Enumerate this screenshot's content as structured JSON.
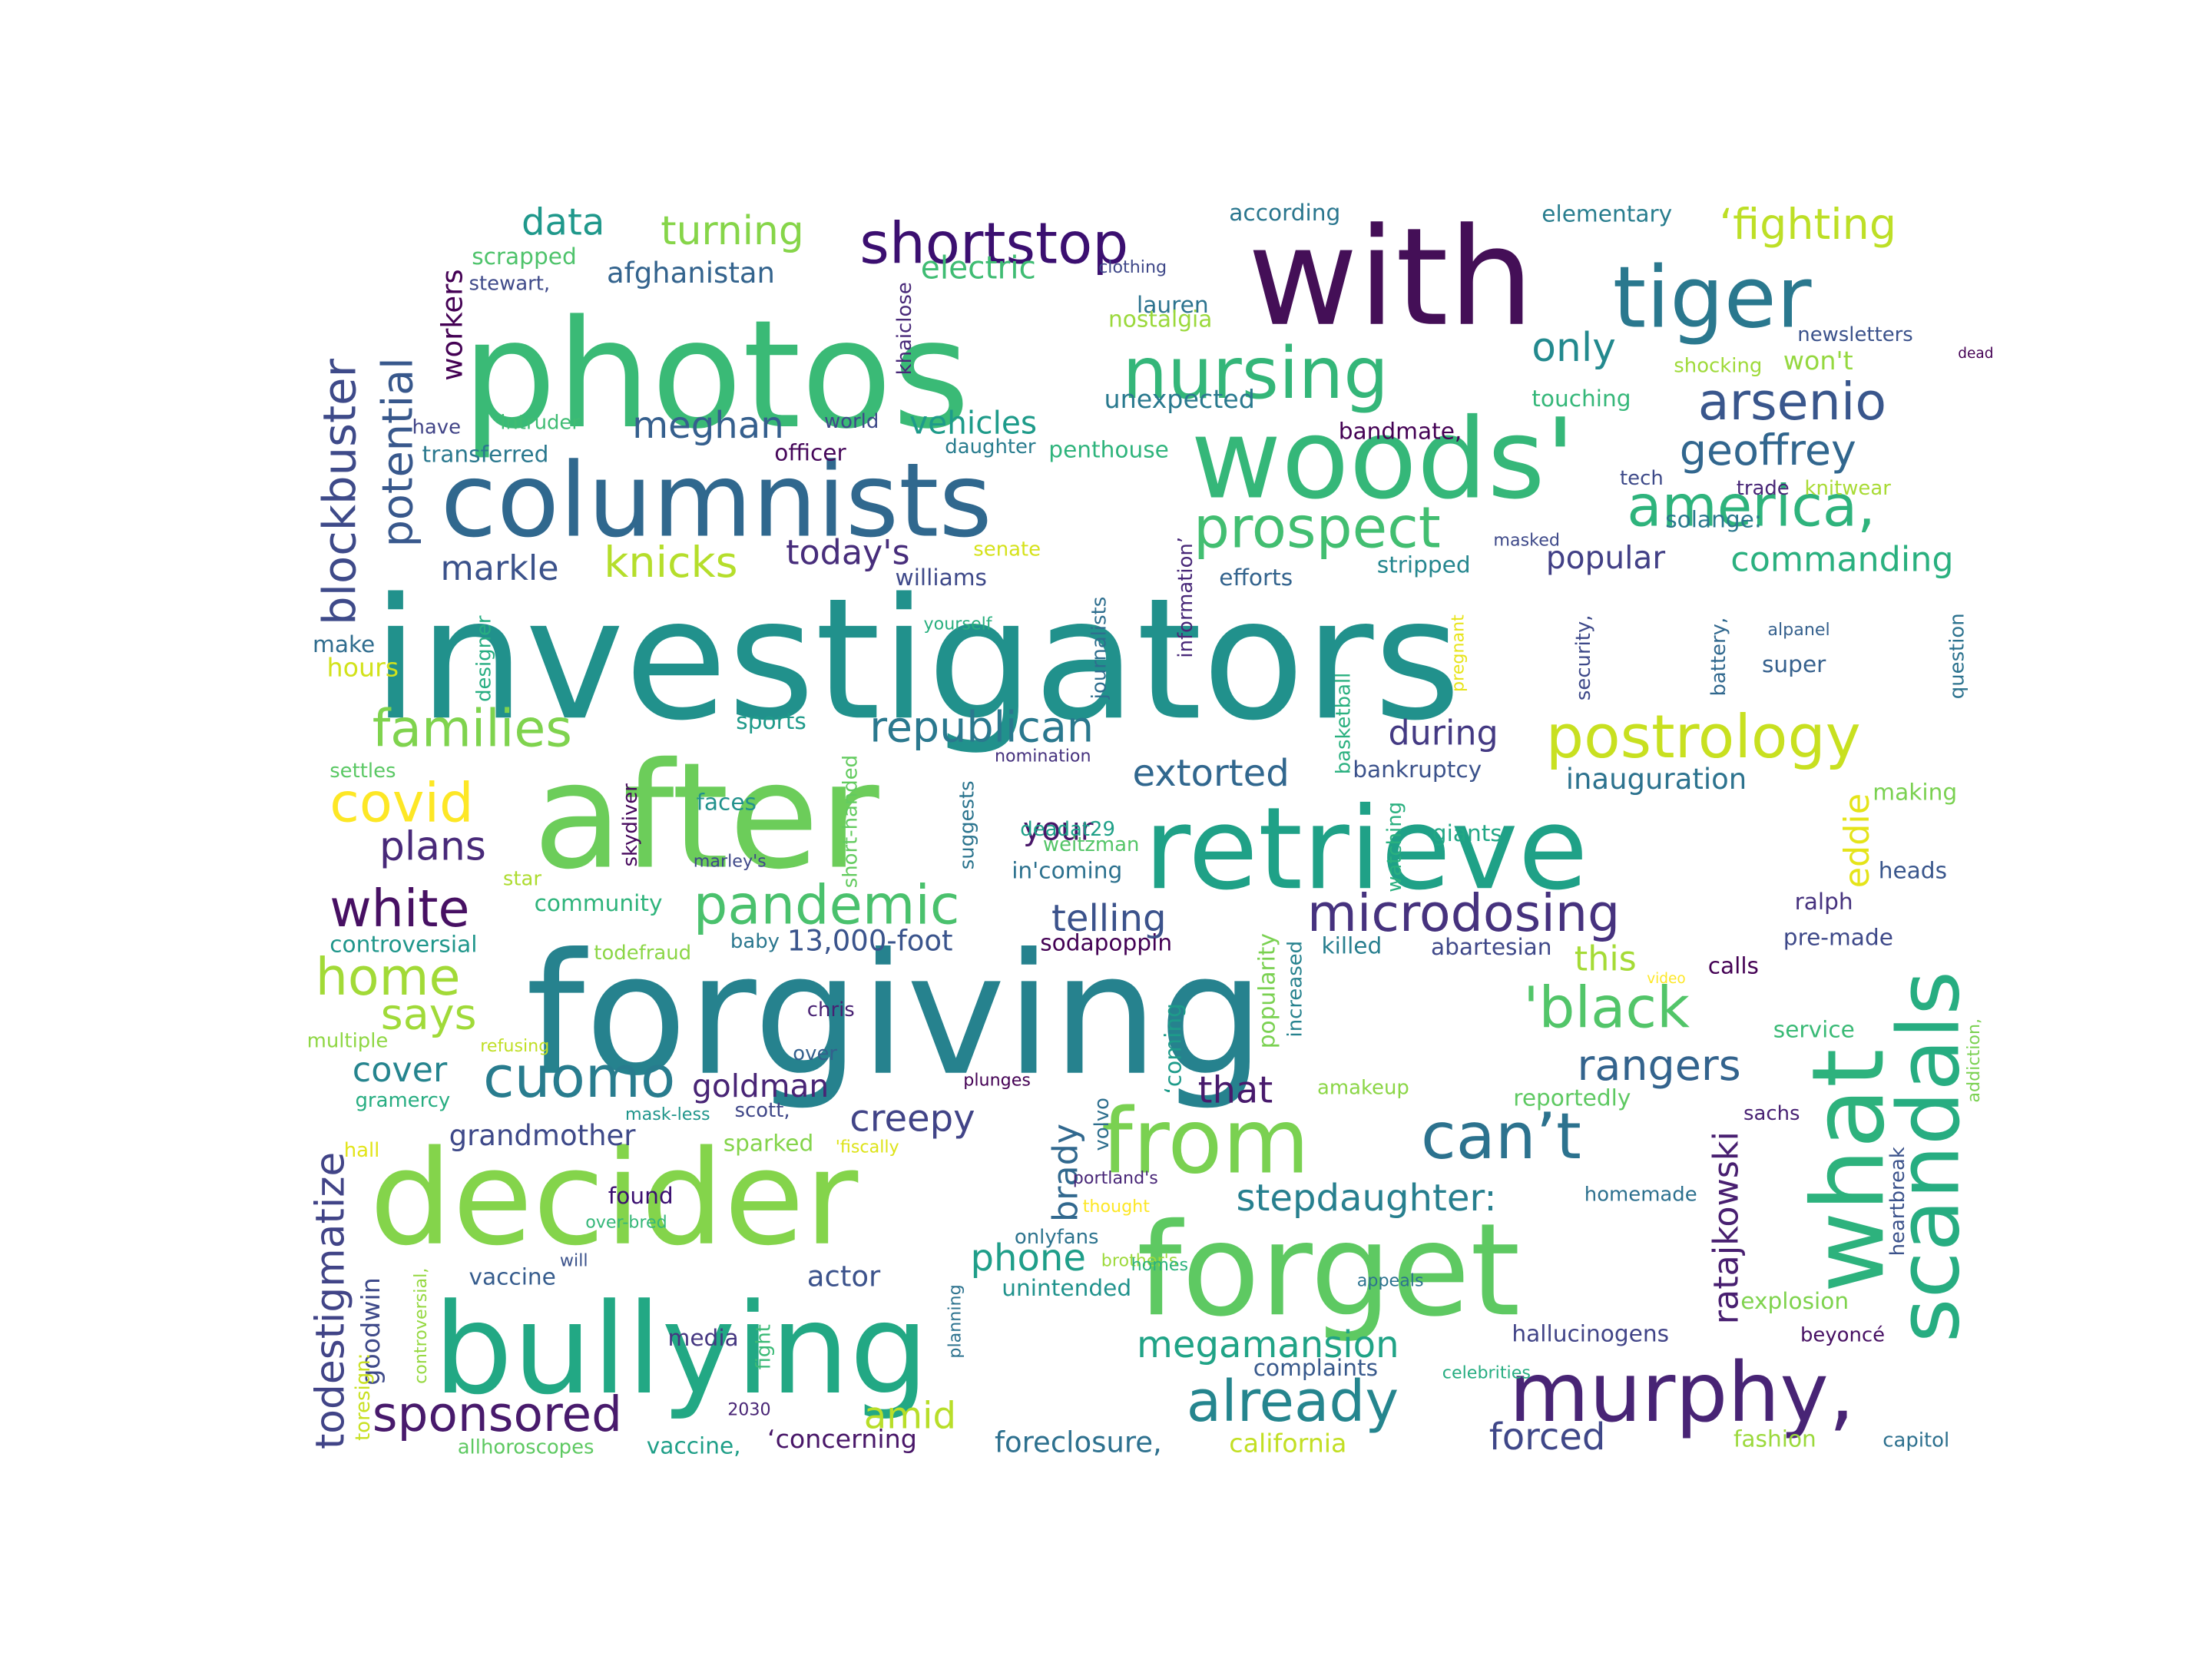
{
  "words": [
    {
      "text": "investigators",
      "color": "#21918c"
    },
    {
      "text": "forgiving",
      "color": "#26828e"
    },
    {
      "text": "photos",
      "color": "#3aba76"
    },
    {
      "text": "after",
      "color": "#6ccd5a"
    },
    {
      "text": "with",
      "color": "#440f57"
    },
    {
      "text": "forget",
      "color": "#5ec962"
    },
    {
      "text": "decider",
      "color": "#84d44b"
    },
    {
      "text": "bullying",
      "color": "#22a884"
    },
    {
      "text": "woods'",
      "color": "#35b779"
    },
    {
      "text": "retrieve",
      "color": "#1fa187"
    },
    {
      "text": "columnists",
      "color": "#30688e"
    },
    {
      "text": "what",
      "color": "#2db27d"
    },
    {
      "text": "murphy,",
      "color": "#482475"
    },
    {
      "text": "tiger",
      "color": "#2a788e"
    },
    {
      "text": "scandals",
      "color": "#27ad81"
    },
    {
      "text": "from",
      "color": "#7ad151"
    },
    {
      "text": "can’t",
      "color": "#2c728e"
    },
    {
      "text": "nursing",
      "color": "#34b679"
    },
    {
      "text": "shortstop",
      "color": "#3b0f70"
    },
    {
      "text": "blockbuster",
      "color": "#3e4a89"
    },
    {
      "text": "potential",
      "color": "#38588c"
    },
    {
      "text": "prospect",
      "color": "#42be71"
    },
    {
      "text": "america,",
      "color": "#2eb37c"
    },
    {
      "text": "arsenio",
      "color": "#39568c"
    },
    {
      "text": "postrology",
      "color": "#c8e020"
    },
    {
      "text": "microdosing",
      "color": "#46327e"
    },
    {
      "text": "pandemic",
      "color": "#4ac16d"
    },
    {
      "text": "'black",
      "color": "#52c569"
    },
    {
      "text": "already",
      "color": "#25858e"
    },
    {
      "text": "families",
      "color": "#7fd34e"
    },
    {
      "text": "covid",
      "color": "#fde725"
    },
    {
      "text": "white",
      "color": "#471063"
    },
    {
      "text": "home",
      "color": "#a2da37"
    },
    {
      "text": "cuomo",
      "color": "#287c8e"
    },
    {
      "text": "sponsored",
      "color": "#481a6c"
    },
    {
      "text": "todestigmatize",
      "color": "#414487"
    },
    {
      "text": "megamansion",
      "color": "#20a386"
    },
    {
      "text": "geoffrey",
      "color": "#31668e"
    },
    {
      "text": "republican",
      "color": "#2a788e"
    },
    {
      "text": "says",
      "color": "#a0da39"
    },
    {
      "text": "rangers",
      "color": "#33638d"
    },
    {
      "text": "stepdaughter:",
      "color": "#277f8e"
    },
    {
      "text": "data",
      "color": "#1f988b"
    },
    {
      "text": "turning",
      "color": "#86d549"
    },
    {
      "text": "electric",
      "color": "#3fbc73"
    },
    {
      "text": "only",
      "color": "#23898e"
    },
    {
      "text": "‘fighting",
      "color": "#bddf26"
    },
    {
      "text": "meghan",
      "color": "#355f8d"
    },
    {
      "text": "vehicles",
      "color": "#1e9b8a"
    },
    {
      "text": "knicks",
      "color": "#b5de2b"
    },
    {
      "text": "markle",
      "color": "#3b528b"
    },
    {
      "text": "today's",
      "color": "#472d7b"
    },
    {
      "text": "commanding",
      "color": "#2ab07f"
    },
    {
      "text": "popular",
      "color": "#424086"
    },
    {
      "text": "plans",
      "color": "#482979"
    },
    {
      "text": "extorted",
      "color": "#31678e"
    },
    {
      "text": "during",
      "color": "#443a83"
    },
    {
      "text": "inauguration",
      "color": "#2c728e"
    },
    {
      "text": "your",
      "color": "#481769"
    },
    {
      "text": "telling",
      "color": "#3b528b"
    },
    {
      "text": "eddie",
      "color": "#e5e419"
    },
    {
      "text": "brady",
      "color": "#31688e"
    },
    {
      "text": "ratajkowski",
      "color": "#481f70"
    },
    {
      "text": "creepy",
      "color": "#414487"
    },
    {
      "text": "cover",
      "color": "#25848e"
    },
    {
      "text": "grandmother",
      "color": "#3e4989"
    },
    {
      "text": "goldman",
      "color": "#482475"
    },
    {
      "text": "that",
      "color": "#481a6c"
    },
    {
      "text": "phone",
      "color": "#1f9e89"
    },
    {
      "text": "amid",
      "color": "#b8de29"
    },
    {
      "text": "forced",
      "color": "#3f4788"
    },
    {
      "text": "foreclosure,",
      "color": "#2d708e"
    },
    {
      "text": "california",
      "color": "#c2df23"
    },
    {
      "text": "actor",
      "color": "#3b528b"
    },
    {
      "text": "this",
      "color": "#a5db36"
    },
    {
      "text": "workers",
      "color": "#440154"
    },
    {
      "text": "afghanistan",
      "color": "#33638d"
    },
    {
      "text": "lauren",
      "color": "#2c738e"
    },
    {
      "text": "unexpected",
      "color": "#29798e"
    },
    {
      "text": "penthouse",
      "color": "#2fb47c"
    },
    {
      "text": "officer",
      "color": "#46075a"
    },
    {
      "text": "won't",
      "color": "#95d840"
    },
    {
      "text": "according",
      "color": "#2a768e"
    },
    {
      "text": "elementary",
      "color": "#287d8e"
    },
    {
      "text": "newsletters",
      "color": "#3b528b"
    },
    {
      "text": "shocking",
      "color": "#9fda3a"
    },
    {
      "text": "touching",
      "color": "#35b779"
    },
    {
      "text": "bandmate,",
      "color": "#440154"
    },
    {
      "text": "tech",
      "color": "#3e4a89"
    },
    {
      "text": "trade",
      "color": "#482677"
    },
    {
      "text": "knitwear",
      "color": "#a8db34"
    },
    {
      "text": "solange:",
      "color": "#2a788e"
    },
    {
      "text": "senate",
      "color": "#d5e21a"
    },
    {
      "text": "stripped",
      "color": "#24868e"
    },
    {
      "text": "efforts",
      "color": "#33638d"
    },
    {
      "text": "williams",
      "color": "#3e4989"
    },
    {
      "text": "super",
      "color": "#35608d"
    },
    {
      "text": "hours",
      "color": "#d2e21b"
    },
    {
      "text": "make",
      "color": "#2f6c8e"
    },
    {
      "text": "settles",
      "color": "#5ac864"
    },
    {
      "text": "sports",
      "color": "#1f9a8a"
    },
    {
      "text": "faces",
      "color": "#21918c"
    },
    {
      "text": "skydiver",
      "color": "#46085c"
    },
    {
      "text": "suggests",
      "color": "#2b748e"
    },
    {
      "text": "deadat29",
      "color": "#1fa088"
    },
    {
      "text": "weitzman",
      "color": "#54c568"
    },
    {
      "text": "in'coming",
      "color": "#2c718e"
    },
    {
      "text": "bankruptcy",
      "color": "#3b528b"
    },
    {
      "text": "giants",
      "color": "#22a785"
    },
    {
      "text": "making",
      "color": "#7ad151"
    },
    {
      "text": "heads",
      "color": "#39568c"
    },
    {
      "text": "ralph",
      "color": "#46327e"
    },
    {
      "text": "pre-made",
      "color": "#3e4989"
    },
    {
      "text": "calls",
      "color": "#440154"
    },
    {
      "text": "service",
      "color": "#3aba76"
    },
    {
      "text": "sachs",
      "color": "#482173"
    },
    {
      "text": "homemade",
      "color": "#2d708e"
    },
    {
      "text": "explosion",
      "color": "#7fd34e"
    },
    {
      "text": "hallucinogens",
      "color": "#414487"
    },
    {
      "text": "beyoncé",
      "color": "#471063"
    },
    {
      "text": "fashion",
      "color": "#9bd93c"
    },
    {
      "text": "capitol",
      "color": "#2d708e"
    },
    {
      "text": "reportedly",
      "color": "#5ec962"
    },
    {
      "text": "abartesian",
      "color": "#3f4889"
    },
    {
      "text": "killed",
      "color": "#277e8e"
    },
    {
      "text": "sodapoppin",
      "color": "#440154"
    },
    {
      "text": "13,000-foot",
      "color": "#3a548c"
    },
    {
      "text": "baby",
      "color": "#2a778e"
    },
    {
      "text": "todefraud",
      "color": "#8bd646"
    },
    {
      "text": "community",
      "color": "#2fb47c"
    },
    {
      "text": "controversial",
      "color": "#1f968b"
    },
    {
      "text": "star",
      "color": "#addc30"
    },
    {
      "text": "chris",
      "color": "#482173"
    },
    {
      "text": "over",
      "color": "#34608d"
    },
    {
      "text": "scott,",
      "color": "#3f4788"
    },
    {
      "text": "plunges",
      "color": "#440154"
    },
    {
      "text": "amakeup",
      "color": "#8bd646"
    },
    {
      "text": "gramercy",
      "color": "#27ad81"
    },
    {
      "text": "hall",
      "color": "#e2e418"
    },
    {
      "text": "sparked",
      "color": "#84d44b"
    },
    {
      "text": "found",
      "color": "#3b0f70"
    },
    {
      "text": "over-bred",
      "color": "#35b779"
    },
    {
      "text": "vaccine",
      "color": "#365c8d"
    },
    {
      "text": "media",
      "color": "#453781"
    },
    {
      "text": "2030",
      "color": "#482475"
    },
    {
      "text": "allhoroscopes",
      "color": "#5ec962"
    },
    {
      "text": "vaccine,",
      "color": "#1f9f88"
    },
    {
      "text": "‘concerning",
      "color": "#481668"
    },
    {
      "text": "unintended",
      "color": "#20928c"
    },
    {
      "text": "onlyfans",
      "color": "#2c738e"
    },
    {
      "text": "complaints",
      "color": "#38598c"
    },
    {
      "text": "appeals",
      "color": "#2c738e"
    },
    {
      "text": "goodwin",
      "color": "#3e4a89"
    },
    {
      "text": "stewart,",
      "color": "#3e4989"
    },
    {
      "text": "have",
      "color": "#414487"
    },
    {
      "text": "transferred",
      "color": "#2a788e"
    },
    {
      "text": "intruder",
      "color": "#3fbc73"
    },
    {
      "text": "scrapped",
      "color": "#4ec36b"
    },
    {
      "text": "world",
      "color": "#3e4989"
    },
    {
      "text": "daughter",
      "color": "#287c8e"
    },
    {
      "text": "clothing",
      "color": "#3f4889"
    },
    {
      "text": "nostalgia",
      "color": "#9bd93c"
    },
    {
      "text": "khaiclose",
      "color": "#482878"
    },
    {
      "text": "information’",
      "color": "#482878"
    },
    {
      "text": "journalists",
      "color": "#2e6e8e"
    },
    {
      "text": "designer",
      "color": "#26ad81"
    },
    {
      "text": "basketball",
      "color": "#2ab07f"
    },
    {
      "text": "pregnant",
      "color": "#e7e419"
    },
    {
      "text": "security,",
      "color": "#3e4989"
    },
    {
      "text": "battery,",
      "color": "#31688e"
    },
    {
      "text": "question",
      "color": "#2c728e"
    },
    {
      "text": "yourself",
      "color": "#29af7f"
    },
    {
      "text": "alpanel",
      "color": "#35608d"
    },
    {
      "text": "masked",
      "color": "#3e4989"
    },
    {
      "text": "dead",
      "color": "#440154"
    },
    {
      "text": "nomination",
      "color": "#46327e"
    },
    {
      "text": "short-handed",
      "color": "#63cb5f"
    },
    {
      "text": "marley's",
      "color": "#3f4889"
    },
    {
      "text": "watching",
      "color": "#2ab07f"
    },
    {
      "text": "popularity",
      "color": "#7ad151"
    },
    {
      "text": "increased",
      "color": "#26828e"
    },
    {
      "text": "video",
      "color": "#fde725"
    },
    {
      "text": "multiple",
      "color": "#8fd744"
    },
    {
      "text": "refusing",
      "color": "#c0df25"
    },
    {
      "text": "mask-less",
      "color": "#1f958b"
    },
    {
      "text": "'fiscally",
      "color": "#dde318"
    },
    {
      "text": "portland's",
      "color": "#482677"
    },
    {
      "text": "thought",
      "color": "#fde725"
    },
    {
      "text": "will",
      "color": "#3b528b"
    },
    {
      "text": "brother's",
      "color": "#9dd93b"
    },
    {
      "text": "planning",
      "color": "#2c728e"
    },
    {
      "text": "fight",
      "color": "#3aba76"
    },
    {
      "text": "homes",
      "color": "#2db27d"
    },
    {
      "text": "volvo",
      "color": "#2e6f8e"
    },
    {
      "text": "‘coming",
      "color": "#1e9b8a"
    },
    {
      "text": "celebrities",
      "color": "#26ad81"
    },
    {
      "text": "heartbreak",
      "color": "#3b528b"
    },
    {
      "text": "addiction,",
      "color": "#7ad151"
    },
    {
      "text": "toresign:",
      "color": "#c8e020"
    },
    {
      "text": "controversial,",
      "color": "#95d840"
    }
  ]
}
